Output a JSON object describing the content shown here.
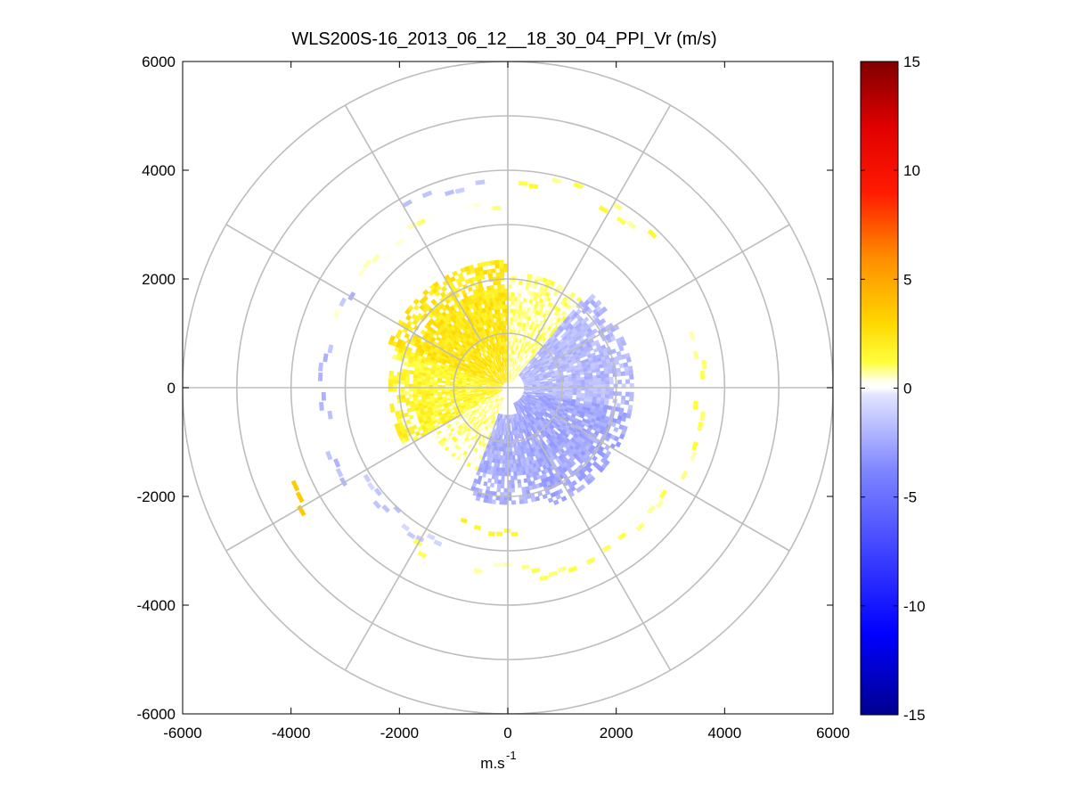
{
  "chart_data": {
    "type": "heatmap",
    "subtype": "polar-ppi",
    "title": "WLS200S-16_2013_06_12__18_30_04_PPI_Vr (m/s)",
    "xlabel": "m.s",
    "xlabel_superscript": "-1",
    "ylabel": "",
    "xlim": [
      -6000,
      6000
    ],
    "ylim": [
      -6000,
      6000
    ],
    "xticks": [
      -6000,
      -4000,
      -2000,
      0,
      2000,
      4000,
      6000
    ],
    "yticks": [
      6000,
      4000,
      2000,
      0,
      -2000,
      -4000,
      -6000
    ],
    "xtick_labels": [
      "-6000",
      "-4000",
      "-2000",
      "0",
      "2000",
      "4000",
      "6000"
    ],
    "ytick_labels": [
      "6000",
      "4000",
      "2000",
      "0",
      "-2000",
      "-4000",
      "-6000"
    ],
    "polar_grid": {
      "ring_radii": [
        1000,
        2000,
        3000,
        4000,
        5000,
        6000
      ],
      "spoke_angles_deg": [
        0,
        30,
        60,
        90,
        120,
        150,
        180,
        210,
        240,
        270,
        300,
        330
      ]
    },
    "colorbar": {
      "range": [
        -15,
        15
      ],
      "ticks": [
        15,
        10,
        5,
        0,
        -5,
        -10,
        -15
      ],
      "tick_labels": [
        "15",
        "10",
        "5",
        "0",
        "-5",
        "-10",
        "-15"
      ]
    },
    "velocity_field": {
      "description_range_m": [
        100,
        2300
      ],
      "sectors": [
        {
          "az_from": 0,
          "az_to": 40,
          "r_min": 100,
          "r_max": 2100,
          "vr": 0.7
        },
        {
          "az_from": 40,
          "az_to": 100,
          "r_min": 300,
          "r_max": 2300,
          "vr": -1.8
        },
        {
          "az_from": 100,
          "az_to": 160,
          "r_min": 300,
          "r_max": 2300,
          "vr": -2.5
        },
        {
          "az_from": 160,
          "az_to": 200,
          "r_min": 500,
          "r_max": 2100,
          "vr": -2.2
        },
        {
          "az_from": 200,
          "az_to": 240,
          "r_min": 200,
          "r_max": 1600,
          "vr": 0.6
        },
        {
          "az_from": 240,
          "az_to": 290,
          "r_min": 100,
          "r_max": 2200,
          "vr": 1.6
        },
        {
          "az_from": 290,
          "az_to": 360,
          "r_min": 100,
          "r_max": 2300,
          "vr": 2.3
        }
      ],
      "sparse_rings": [
        {
          "r": 3300,
          "az_from": 280,
          "az_to": 360,
          "vr": 0.5
        },
        {
          "r": 3400,
          "az_from": 230,
          "az_to": 300,
          "vr": -1.8
        },
        {
          "r": 3800,
          "az_from": 330,
          "az_to": 360,
          "vr": -1.5
        },
        {
          "r": 3800,
          "az_from": 0,
          "az_to": 50,
          "vr": 1.2
        },
        {
          "r": 3500,
          "az_from": 70,
          "az_to": 120,
          "vr": 1.0
        },
        {
          "r": 3500,
          "az_from": 120,
          "az_to": 170,
          "vr": 0.8
        },
        {
          "r": 3300,
          "az_from": 170,
          "az_to": 210,
          "vr": 0.9
        },
        {
          "r": 3100,
          "az_from": 200,
          "az_to": 240,
          "vr": -1.2
        },
        {
          "r": 4400,
          "az_from": 238,
          "az_to": 246,
          "vr": 3.5
        },
        {
          "r": 2600,
          "az_from": 170,
          "az_to": 200,
          "vr": 1.5
        }
      ]
    }
  }
}
